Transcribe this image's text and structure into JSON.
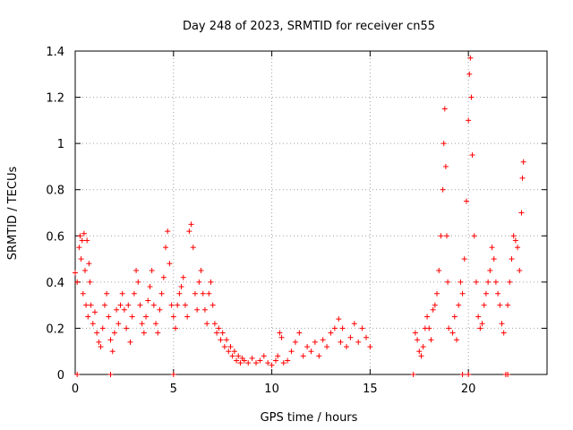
{
  "chart_data": {
    "type": "scatter",
    "title": "Day 248 of 2023, SRMTID for receiver cn55",
    "xlabel": "GPS time / hours",
    "ylabel": "SRMTID / TECUs",
    "xlim": [
      0,
      24
    ],
    "ylim": [
      0,
      1.4
    ],
    "grid": true,
    "x_ticks": [
      0,
      5,
      10,
      15,
      20
    ],
    "y_ticks": [
      0,
      0.2,
      0.4,
      0.6,
      0.8,
      1,
      1.2,
      1.4
    ],
    "marker": "+",
    "color": "#ff0000",
    "series": [
      {
        "name": "SRMTID",
        "points": [
          [
            0.0,
            0.44
          ],
          [
            0.1,
            0.4
          ],
          [
            0.2,
            0.55
          ],
          [
            0.25,
            0.6
          ],
          [
            0.3,
            0.5
          ],
          [
            0.35,
            0.58
          ],
          [
            0.4,
            0.35
          ],
          [
            0.45,
            0.61
          ],
          [
            0.5,
            0.45
          ],
          [
            0.55,
            0.3
          ],
          [
            0.6,
            0.58
          ],
          [
            0.65,
            0.25
          ],
          [
            0.7,
            0.48
          ],
          [
            0.75,
            0.4
          ],
          [
            0.8,
            0.3
          ],
          [
            0.9,
            0.22
          ],
          [
            1.0,
            0.27
          ],
          [
            1.1,
            0.18
          ],
          [
            1.2,
            0.14
          ],
          [
            1.3,
            0.12
          ],
          [
            1.4,
            0.2
          ],
          [
            1.5,
            0.3
          ],
          [
            1.6,
            0.35
          ],
          [
            1.7,
            0.25
          ],
          [
            1.8,
            0.15
          ],
          [
            1.9,
            0.1
          ],
          [
            2.0,
            0.18
          ],
          [
            2.1,
            0.28
          ],
          [
            2.2,
            0.22
          ],
          [
            2.3,
            0.3
          ],
          [
            2.4,
            0.35
          ],
          [
            2.5,
            0.28
          ],
          [
            2.6,
            0.2
          ],
          [
            2.7,
            0.3
          ],
          [
            2.8,
            0.14
          ],
          [
            2.9,
            0.25
          ],
          [
            3.0,
            0.35
          ],
          [
            3.1,
            0.45
          ],
          [
            3.2,
            0.4
          ],
          [
            3.3,
            0.3
          ],
          [
            3.4,
            0.22
          ],
          [
            3.5,
            0.18
          ],
          [
            3.6,
            0.25
          ],
          [
            3.7,
            0.32
          ],
          [
            3.8,
            0.38
          ],
          [
            3.9,
            0.45
          ],
          [
            4.0,
            0.3
          ],
          [
            4.1,
            0.22
          ],
          [
            4.2,
            0.18
          ],
          [
            4.3,
            0.28
          ],
          [
            4.4,
            0.35
          ],
          [
            4.5,
            0.42
          ],
          [
            4.6,
            0.55
          ],
          [
            4.7,
            0.62
          ],
          [
            4.8,
            0.48
          ],
          [
            4.9,
            0.3
          ],
          [
            5.0,
            0.25
          ],
          [
            5.1,
            0.2
          ],
          [
            5.2,
            0.3
          ],
          [
            5.3,
            0.35
          ],
          [
            5.4,
            0.38
          ],
          [
            5.5,
            0.42
          ],
          [
            5.6,
            0.3
          ],
          [
            5.7,
            0.25
          ],
          [
            5.8,
            0.62
          ],
          [
            5.9,
            0.65
          ],
          [
            6.0,
            0.55
          ],
          [
            6.1,
            0.35
          ],
          [
            6.2,
            0.28
          ],
          [
            6.3,
            0.4
          ],
          [
            6.4,
            0.45
          ],
          [
            6.5,
            0.35
          ],
          [
            6.6,
            0.28
          ],
          [
            6.7,
            0.22
          ],
          [
            6.8,
            0.35
          ],
          [
            6.9,
            0.4
          ],
          [
            7.0,
            0.3
          ],
          [
            7.1,
            0.22
          ],
          [
            7.2,
            0.18
          ],
          [
            7.3,
            0.2
          ],
          [
            7.4,
            0.15
          ],
          [
            7.5,
            0.18
          ],
          [
            7.6,
            0.12
          ],
          [
            7.7,
            0.15
          ],
          [
            7.8,
            0.1
          ],
          [
            7.9,
            0.12
          ],
          [
            8.0,
            0.08
          ],
          [
            8.1,
            0.1
          ],
          [
            8.2,
            0.06
          ],
          [
            8.3,
            0.08
          ],
          [
            8.4,
            0.05
          ],
          [
            8.5,
            0.07
          ],
          [
            8.6,
            0.06
          ],
          [
            8.8,
            0.05
          ],
          [
            9.0,
            0.07
          ],
          [
            9.2,
            0.05
          ],
          [
            9.4,
            0.06
          ],
          [
            9.6,
            0.08
          ],
          [
            9.8,
            0.05
          ],
          [
            10.0,
            0.04
          ],
          [
            10.2,
            0.06
          ],
          [
            10.3,
            0.08
          ],
          [
            10.4,
            0.18
          ],
          [
            10.5,
            0.16
          ],
          [
            10.6,
            0.05
          ],
          [
            10.8,
            0.06
          ],
          [
            11.0,
            0.1
          ],
          [
            11.2,
            0.14
          ],
          [
            11.4,
            0.18
          ],
          [
            11.6,
            0.08
          ],
          [
            11.8,
            0.12
          ],
          [
            12.0,
            0.1
          ],
          [
            12.2,
            0.14
          ],
          [
            12.4,
            0.08
          ],
          [
            12.6,
            0.15
          ],
          [
            12.8,
            0.12
          ],
          [
            13.0,
            0.18
          ],
          [
            13.2,
            0.2
          ],
          [
            13.4,
            0.24
          ],
          [
            13.5,
            0.14
          ],
          [
            13.6,
            0.2
          ],
          [
            13.8,
            0.12
          ],
          [
            14.0,
            0.16
          ],
          [
            14.2,
            0.22
          ],
          [
            14.4,
            0.14
          ],
          [
            14.6,
            0.2
          ],
          [
            14.8,
            0.16
          ],
          [
            15.0,
            0.12
          ],
          [
            17.3,
            0.18
          ],
          [
            17.4,
            0.15
          ],
          [
            17.5,
            0.1
          ],
          [
            17.6,
            0.08
          ],
          [
            17.7,
            0.12
          ],
          [
            17.8,
            0.2
          ],
          [
            17.9,
            0.25
          ],
          [
            18.0,
            0.2
          ],
          [
            18.1,
            0.15
          ],
          [
            18.2,
            0.28
          ],
          [
            18.3,
            0.3
          ],
          [
            18.4,
            0.35
          ],
          [
            18.5,
            0.45
          ],
          [
            18.6,
            0.6
          ],
          [
            18.7,
            0.8
          ],
          [
            18.75,
            1.0
          ],
          [
            18.8,
            1.15
          ],
          [
            18.85,
            0.9
          ],
          [
            18.9,
            0.6
          ],
          [
            18.95,
            0.4
          ],
          [
            19.0,
            0.2
          ],
          [
            19.2,
            0.18
          ],
          [
            19.3,
            0.25
          ],
          [
            19.4,
            0.15
          ],
          [
            19.5,
            0.3
          ],
          [
            19.6,
            0.4
          ],
          [
            19.7,
            0.35
          ],
          [
            19.8,
            0.5
          ],
          [
            19.9,
            0.75
          ],
          [
            20.0,
            1.1
          ],
          [
            20.05,
            1.3
          ],
          [
            20.1,
            1.37
          ],
          [
            20.15,
            1.2
          ],
          [
            20.2,
            0.95
          ],
          [
            20.3,
            0.6
          ],
          [
            20.4,
            0.4
          ],
          [
            20.5,
            0.25
          ],
          [
            20.6,
            0.2
          ],
          [
            20.7,
            0.22
          ],
          [
            20.8,
            0.3
          ],
          [
            20.9,
            0.35
          ],
          [
            21.0,
            0.4
          ],
          [
            21.1,
            0.45
          ],
          [
            21.2,
            0.55
          ],
          [
            21.3,
            0.5
          ],
          [
            21.4,
            0.4
          ],
          [
            21.5,
            0.35
          ],
          [
            21.6,
            0.3
          ],
          [
            21.7,
            0.22
          ],
          [
            21.8,
            0.18
          ],
          [
            22.0,
            0.3
          ],
          [
            22.1,
            0.4
          ],
          [
            22.2,
            0.5
          ],
          [
            22.3,
            0.6
          ],
          [
            22.4,
            0.58
          ],
          [
            22.5,
            0.55
          ],
          [
            22.6,
            0.45
          ],
          [
            22.7,
            0.7
          ],
          [
            22.75,
            0.85
          ],
          [
            22.8,
            0.92
          ],
          [
            0.1,
            0.0
          ],
          [
            1.8,
            0.0
          ],
          [
            5.0,
            0.0
          ],
          [
            17.2,
            0.0
          ],
          [
            19.7,
            0.0
          ],
          [
            20.0,
            0.0
          ],
          [
            21.9,
            0.0
          ],
          [
            22.0,
            0.0
          ]
        ]
      }
    ]
  }
}
